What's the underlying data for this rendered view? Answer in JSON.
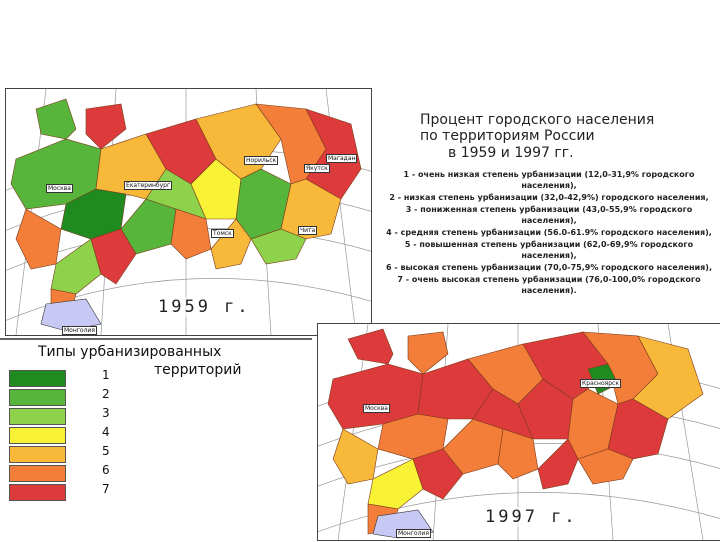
{
  "title": {
    "line1": "Процент городского населения",
    "line2": "по территориям России",
    "line3": "в 1959 и 1997 гг."
  },
  "legend": [
    {
      "text": "1 - очень низкая степень урбанизации (12,0-31,9% городского населения),"
    },
    {
      "text": "2 - низкая степень урбанизации (32,0-42,9%) городского населения,"
    },
    {
      "text": "3 - пониженная степень урбанизации (43,0-55,9% городского населения),"
    },
    {
      "text": "4 - средняя степень урбанизации (56.0-61.9% городского населения),"
    },
    {
      "text": "5 - повышенная степень урбанизации (62,0-69,9% городского населения),"
    },
    {
      "text": "6 - высокая степень урбанизации (70,0-75,9% городского населения),"
    },
    {
      "text": "7 - очень высокая степень урбанизации (76,0-100,0% городского населения)."
    }
  ],
  "types": {
    "title_line1": "Типы урбанизированных",
    "title_line2": "территорий",
    "items": [
      {
        "num": "1",
        "color": "#1f8a1f"
      },
      {
        "num": "2",
        "color": "#56b53a"
      },
      {
        "num": "3",
        "color": "#8ed14a"
      },
      {
        "num": "4",
        "color": "#f7f236"
      },
      {
        "num": "5",
        "color": "#f8b93a"
      },
      {
        "num": "6",
        "color": "#f27e3a"
      },
      {
        "num": "7",
        "color": "#dd3b3b"
      }
    ]
  },
  "maps": {
    "map1959": {
      "year": "1959 г."
    },
    "map1997": {
      "year": "1997 г."
    }
  },
  "cities": {
    "moscow": "Москва",
    "norilsk": "Норильск",
    "yakutsk": "Якутск",
    "chita": "Чита",
    "tomsk": "Томск",
    "magadan": "Магадан",
    "ekaterinburg": "Екатеринбург",
    "krasnoyarsk": "Красноярск",
    "mongolia": "Монголия"
  }
}
